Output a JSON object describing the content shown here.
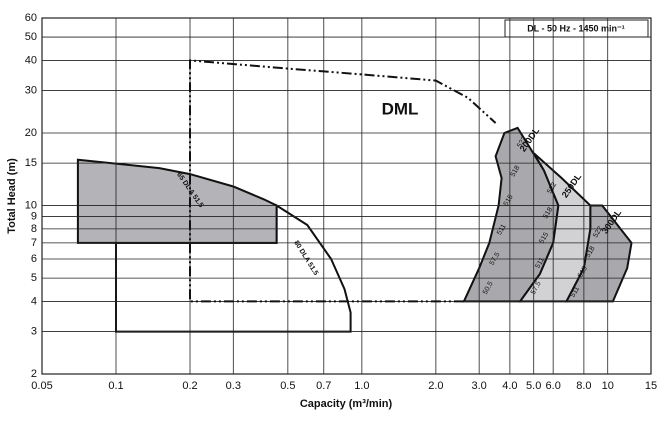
{
  "chart_data": {
    "type": "region",
    "title": "DL - 50 Hz - 1450 min⁻¹",
    "x_label": "Capacity (m³/min)",
    "y_label": "Total Head (m)",
    "xscale": "log",
    "yscale": "log",
    "grid": true,
    "xlim": [
      0.05,
      15
    ],
    "ylim": [
      2,
      60
    ],
    "xticks": [
      0.05,
      0.1,
      0.2,
      0.3,
      0.5,
      0.7,
      {
        "value": 1,
        "label": "1.0"
      },
      {
        "value": 2,
        "label": "2.0"
      },
      {
        "value": 3,
        "label": "3.0"
      },
      {
        "value": 4,
        "label": "4.0"
      },
      {
        "value": 5,
        "label": "5.0"
      },
      {
        "value": 6,
        "label": "6.0"
      },
      {
        "value": 8,
        "label": "8.0"
      },
      10,
      15
    ],
    "yticks": [
      2,
      3,
      4,
      5,
      6,
      7,
      8,
      9,
      10,
      15,
      20,
      30,
      40,
      50,
      60
    ],
    "series": [
      {
        "name": "80 DLA 51.5",
        "color": "#ffffff",
        "x": [
          0.45,
          0.6,
          0.75,
          0.85,
          0.9,
          0.9,
          0.1,
          0.1,
          0.45
        ],
        "y": [
          10,
          8.3,
          6,
          4.5,
          3.6,
          3,
          3,
          7,
          7
        ]
      },
      {
        "name": "65 DL A 51.5",
        "color": "#b4b4b8",
        "x": [
          0.07,
          0.15,
          0.2,
          0.3,
          0.4,
          0.45,
          0.45,
          0.07
        ],
        "y": [
          15.5,
          14.3,
          13.5,
          12,
          10.6,
          10,
          7,
          7
        ]
      },
      {
        "name": "200DL",
        "color": "#a9a9ad",
        "x": [
          2.6,
          4.4,
          5.3,
          6.0,
          6.3,
          5.5,
          4.3,
          3.8,
          3.5,
          3.7,
          3.6,
          3.3,
          3.0
        ],
        "y": [
          4,
          4,
          5.2,
          7,
          10,
          14,
          21,
          20,
          16,
          13,
          10,
          7,
          5.5
        ],
        "sub_labels": [
          "50.5",
          "57.5",
          "511",
          "515",
          "518",
          "522"
        ]
      },
      {
        "name": "250DL",
        "color": "#d2d2d5",
        "x": [
          4.4,
          6.8,
          8.0,
          8.5,
          8.5,
          6.5,
          5.0,
          5.5,
          6.3,
          6.0,
          5.3
        ],
        "y": [
          4,
          4,
          5.5,
          8,
          10,
          13,
          16.5,
          14,
          10,
          7,
          5.2
        ],
        "sub_labels": [
          "57.5",
          "511",
          "515",
          "518",
          "522"
        ]
      },
      {
        "name": "300DL",
        "color": "#a9a9ad",
        "x": [
          6.8,
          10.5,
          12,
          12.5,
          9.5,
          8.5,
          8.5,
          8.0
        ],
        "y": [
          4,
          4,
          5.5,
          7,
          10,
          10,
          8,
          5.5
        ],
        "sub_labels": [
          "511",
          "515",
          "518",
          "522"
        ]
      }
    ],
    "boundary": {
      "name": "DML",
      "x": [
        2.6,
        0.2,
        0.2,
        0.5,
        1.0,
        2.0,
        2.7,
        3.5
      ],
      "y": [
        4,
        4,
        40,
        37,
        35,
        33,
        28,
        22
      ]
    }
  }
}
